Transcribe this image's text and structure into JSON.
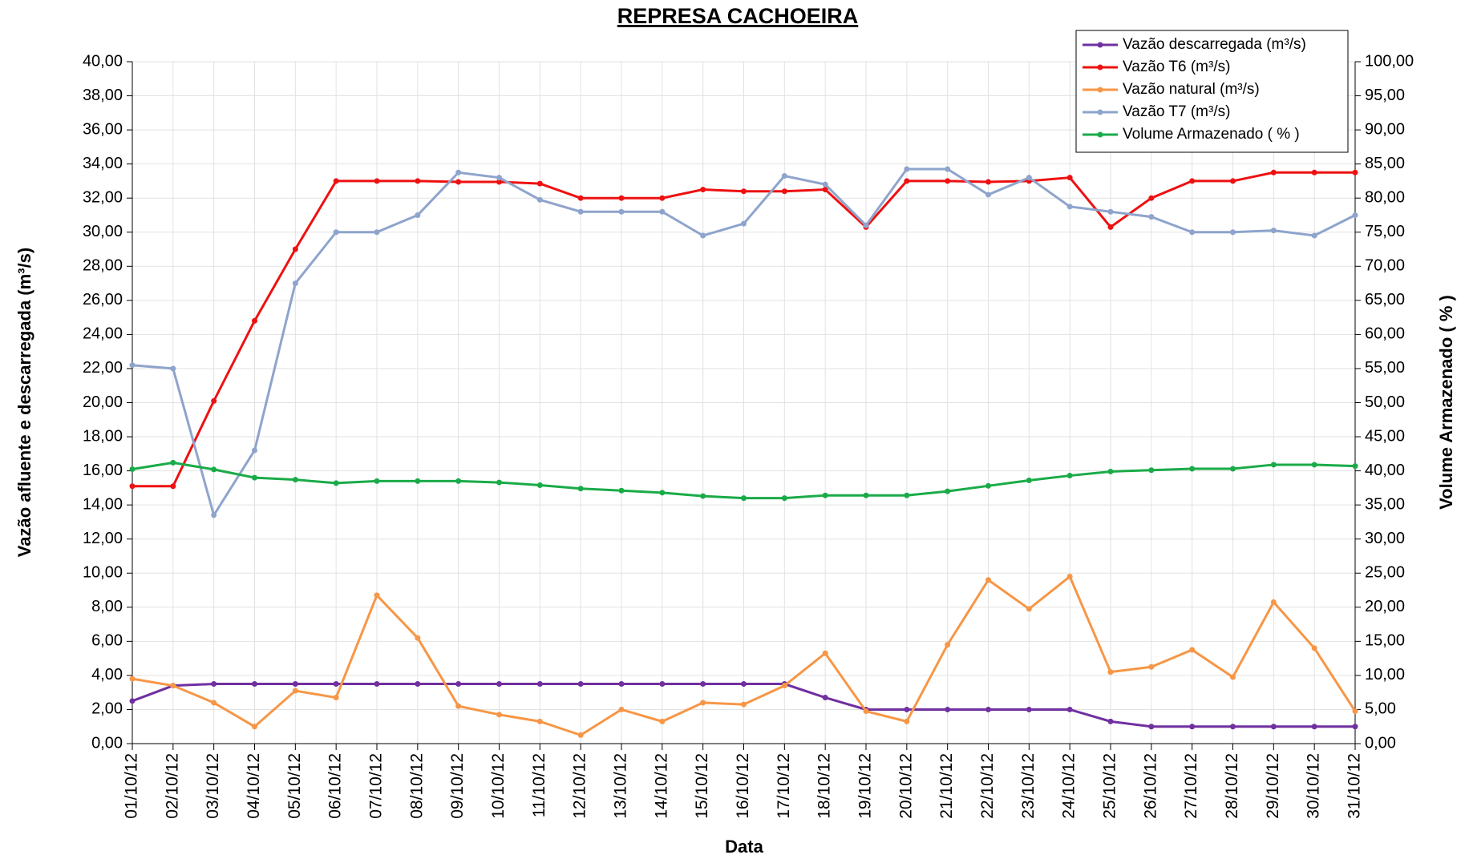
{
  "chart_data": {
    "type": "line",
    "title": "REPRESA CACHOEIRA",
    "x_label": "Data",
    "y_label": "Vazão afluente e descarregada (m³/s)",
    "y2_label": "Volume Armazenado ( % )",
    "categories": [
      "01/10/12",
      "02/10/12",
      "03/10/12",
      "04/10/12",
      "05/10/12",
      "06/10/12",
      "07/10/12",
      "08/10/12",
      "09/10/12",
      "10/10/12",
      "11/10/12",
      "12/10/12",
      "13/10/12",
      "14/10/12",
      "15/10/12",
      "16/10/12",
      "17/10/12",
      "18/10/12",
      "19/10/12",
      "20/10/12",
      "21/10/12",
      "22/10/12",
      "23/10/12",
      "24/10/12",
      "25/10/12",
      "26/10/12",
      "27/10/12",
      "28/10/12",
      "29/10/12",
      "30/10/12",
      "31/10/12"
    ],
    "series": [
      {
        "name": "Vazão descarregada (m³/s)",
        "color": "#7030a0",
        "values": [
          2.5,
          3.4,
          3.5,
          3.5,
          3.5,
          3.5,
          3.5,
          3.5,
          3.5,
          3.5,
          3.5,
          3.5,
          3.5,
          3.5,
          3.5,
          3.5,
          3.5,
          2.7,
          2.0,
          2.0,
          2.0,
          2.0,
          2.0,
          2.0,
          1.3,
          1.0,
          1.0,
          1.0,
          1.0,
          1.0,
          1.0
        ]
      },
      {
        "name": "Vazão T6  (m³/s)",
        "color": "#ee1111",
        "values": [
          15.1,
          15.1,
          20.1,
          24.8,
          29.0,
          33.0,
          33.0,
          33.0,
          32.95,
          32.95,
          32.85,
          32.0,
          32.0,
          32.0,
          32.5,
          32.4,
          32.4,
          32.5,
          30.3,
          33.0,
          33.0,
          32.95,
          33.0,
          33.2,
          30.3,
          32.0,
          33.0,
          33.0,
          33.5,
          33.5,
          33.5
        ]
      },
      {
        "name": "Vazão natural (m³/s)",
        "color": "#f79646",
        "values": [
          3.8,
          3.4,
          2.4,
          1.0,
          3.1,
          2.7,
          8.7,
          6.2,
          2.2,
          1.7,
          1.3,
          0.5,
          2.0,
          1.3,
          2.4,
          2.3,
          3.4,
          5.3,
          1.9,
          1.3,
          5.8,
          9.6,
          7.9,
          9.8,
          4.2,
          4.5,
          5.5,
          3.9,
          8.3,
          5.6,
          1.9
        ]
      },
      {
        "name": "Vazão T7 (m³/s)",
        "color": "#8ea4cc",
        "values": [
          22.2,
          22.0,
          13.4,
          17.2,
          27.0,
          30.0,
          30.0,
          31.0,
          33.5,
          33.2,
          31.9,
          31.2,
          31.2,
          31.2,
          29.8,
          30.5,
          33.3,
          32.8,
          30.4,
          33.7,
          33.7,
          32.2,
          33.2,
          31.5,
          31.2,
          30.9,
          30.0,
          30.0,
          30.1,
          29.8,
          31.0
        ]
      },
      {
        "name": "Volume Armazenado ( % )",
        "color": "#1aab48",
        "axis": "y2",
        "values": [
          40.25,
          41.2,
          40.2,
          39.0,
          38.7,
          38.2,
          38.5,
          38.5,
          38.5,
          38.3,
          37.9,
          37.4,
          37.1,
          36.8,
          36.3,
          36.0,
          36.0,
          36.4,
          36.4,
          36.4,
          37.0,
          37.8,
          38.6,
          39.3,
          39.9,
          40.1,
          40.3,
          40.3,
          40.9,
          40.9,
          40.7
        ]
      }
    ],
    "ylim": [
      0,
      40
    ],
    "yticks": [
      {
        "value": 0,
        "label": "0,00"
      },
      {
        "value": 2,
        "label": "2,00"
      },
      {
        "value": 4,
        "label": "4,00"
      },
      {
        "value": 6,
        "label": "6,00"
      },
      {
        "value": 8,
        "label": "8,00"
      },
      {
        "value": 10,
        "label": "10,00"
      },
      {
        "value": 12,
        "label": "12,00"
      },
      {
        "value": 14,
        "label": "14,00"
      },
      {
        "value": 16,
        "label": "16,00"
      },
      {
        "value": 18,
        "label": "18,00"
      },
      {
        "value": 20,
        "label": "20,00"
      },
      {
        "value": 22,
        "label": "22,00"
      },
      {
        "value": 24,
        "label": "24,00"
      },
      {
        "value": 26,
        "label": "26,00"
      },
      {
        "value": 28,
        "label": "28,00"
      },
      {
        "value": 30,
        "label": "30,00"
      },
      {
        "value": 32,
        "label": "32,00"
      },
      {
        "value": 34,
        "label": "34,00"
      },
      {
        "value": 36,
        "label": "36,00"
      },
      {
        "value": 38,
        "label": "38,00"
      },
      {
        "value": 40,
        "label": "40,00"
      }
    ],
    "y2lim": [
      0,
      100
    ],
    "y2ticks": [
      {
        "value": 0,
        "label": "0,00"
      },
      {
        "value": 5,
        "label": "5,00"
      },
      {
        "value": 10,
        "label": "10,00"
      },
      {
        "value": 15,
        "label": "15,00"
      },
      {
        "value": 20,
        "label": "20,00"
      },
      {
        "value": 25,
        "label": "25,00"
      },
      {
        "value": 30,
        "label": "30,00"
      },
      {
        "value": 35,
        "label": "35,00"
      },
      {
        "value": 40,
        "label": "40,00"
      },
      {
        "value": 45,
        "label": "45,00"
      },
      {
        "value": 50,
        "label": "50,00"
      },
      {
        "value": 55,
        "label": "55,00"
      },
      {
        "value": 60,
        "label": "60,00"
      },
      {
        "value": 65,
        "label": "65,00"
      },
      {
        "value": 70,
        "label": "70,00"
      },
      {
        "value": 75,
        "label": "75,00"
      },
      {
        "value": 80,
        "label": "80,00"
      },
      {
        "value": 85,
        "label": "85,00"
      },
      {
        "value": 90,
        "label": "90,00"
      },
      {
        "value": 95,
        "label": "95,00"
      },
      {
        "value": 100,
        "label": "100,00"
      }
    ],
    "grid": true,
    "legend": "upper right"
  }
}
